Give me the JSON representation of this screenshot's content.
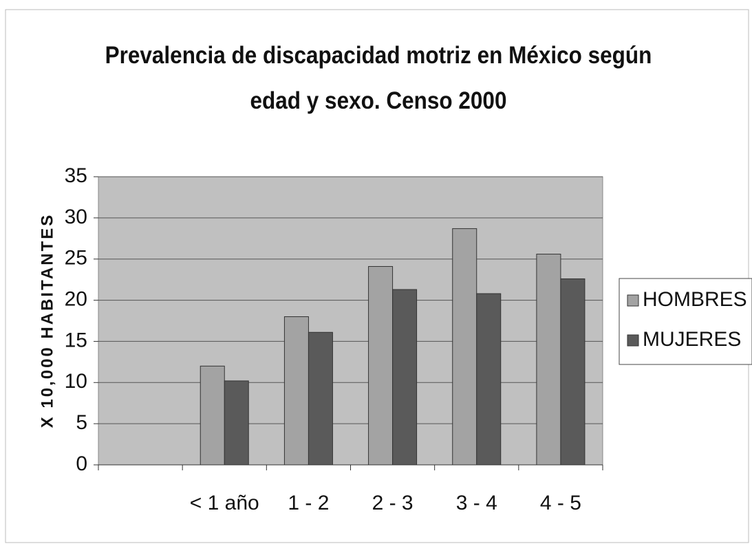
{
  "chart_data": {
    "type": "bar",
    "title": "Prevalencia de discapacidad motriz en México según edad y sexo. Censo 2000",
    "y_label": "X 10,000 HABITANTES",
    "categories": [
      null,
      "< 1 año",
      "1 - 2",
      "2 - 3",
      "3 - 4",
      "4 - 5"
    ],
    "series": [
      {
        "name": "HOMBRES",
        "color": "#a3a3a3",
        "values": [
          null,
          12,
          18,
          24.1,
          28.7,
          25.6
        ]
      },
      {
        "name": "MUJERES",
        "color": "#5a5a5a",
        "values": [
          null,
          10.2,
          16.1,
          21.3,
          20.8,
          22.6
        ]
      }
    ],
    "ylim": [
      0,
      35
    ],
    "yticks": [
      0,
      5,
      10,
      15,
      20,
      25,
      30,
      35
    ],
    "grid": true,
    "legend": "right"
  }
}
